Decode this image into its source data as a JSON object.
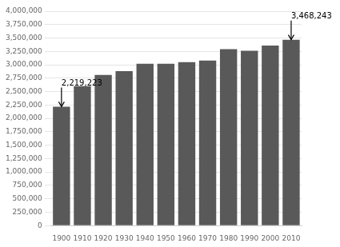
{
  "chart_data": {
    "type": "bar",
    "categories": [
      "1900",
      "1910",
      "1920",
      "1930",
      "1940",
      "1950",
      "1960",
      "1970",
      "1980",
      "1990",
      "2000",
      "2010"
    ],
    "values": [
      2219223,
      2600000,
      2810000,
      2880000,
      3020000,
      3020000,
      3050000,
      3080000,
      3290000,
      3260000,
      3360000,
      3468243
    ],
    "color": "#595959",
    "ylim": [
      0,
      4000000
    ],
    "yticks": [
      0,
      {
        "value": 250000,
        "label": "250,000"
      },
      {
        "value": 500000,
        "label": "500,000"
      },
      {
        "value": 750000,
        "label": "750,000"
      },
      {
        "value": 1000000,
        "label": "1,000,000"
      },
      {
        "value": 1250000,
        "label": "1,250,000"
      },
      {
        "value": 1500000,
        "label": "1,500,000"
      },
      {
        "value": 1750000,
        "label": "1,750,000"
      },
      {
        "value": 2000000,
        "label": "2,000,000"
      },
      {
        "value": 2250000,
        "label": "2,250,000"
      },
      {
        "value": 2500000,
        "label": "2,500,000"
      },
      {
        "value": 2750000,
        "label": "2,750,000"
      },
      {
        "value": 3000000,
        "label": "3,000,000"
      },
      {
        "value": 3250000,
        "label": "3,250,000"
      },
      {
        "value": 3500000,
        "label": "3,500,000"
      },
      {
        "value": 3750000,
        "label": "3,750,000"
      },
      {
        "value": 4000000,
        "label": "4,000,000"
      }
    ],
    "grid": true,
    "annotations": [
      {
        "category": "1900",
        "value": 2219223,
        "label": "2,219,223"
      },
      {
        "category": "2010",
        "value": 3468243,
        "label": "3,468,243"
      }
    ]
  }
}
